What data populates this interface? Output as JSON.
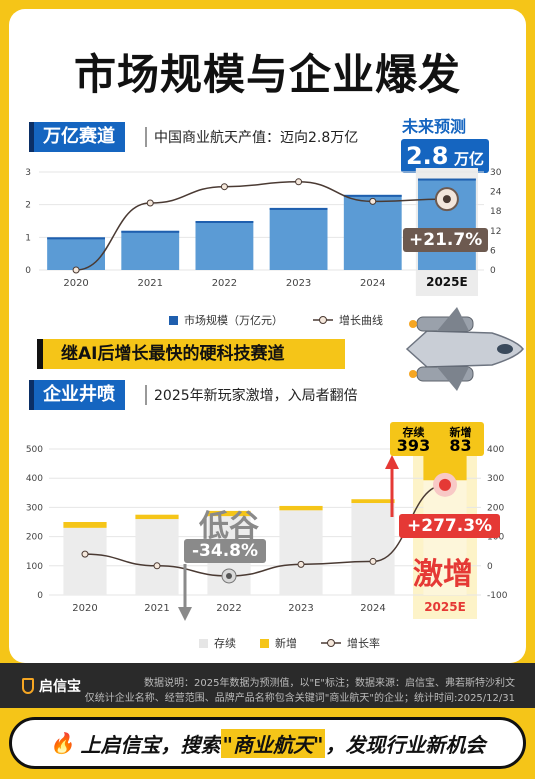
{
  "title": "市场规模与企业爆发",
  "section1": {
    "label": "万亿赛道",
    "subtitle": "中国商业航天产值：迈向2.8万亿",
    "forecast_label": "未来预测",
    "forecast_value": "2.8",
    "forecast_unit": "万亿",
    "growth_tag": "+21.7%"
  },
  "banner": "继AI后增长最快的硬科技赛道",
  "section2": {
    "label": "企业井喷",
    "subtitle": "2025年新玩家激增，入局者翻倍",
    "low_label": "低谷",
    "low_tag": "-34.8%",
    "surge_label": "激增",
    "surge_tag": "+277.3%",
    "existing_label": "存续",
    "existing_value": "393",
    "new_label": "新增",
    "new_value": "83"
  },
  "chart_data": [
    {
      "type": "bar",
      "categories": [
        "2020",
        "2021",
        "2022",
        "2023",
        "2024",
        "2025E"
      ],
      "series": [
        {
          "name": "市场规模（万亿元）",
          "values": [
            1.0,
            1.2,
            1.5,
            1.9,
            2.3,
            2.8
          ]
        },
        {
          "name": "增长曲线",
          "values": [
            0,
            20.5,
            25.5,
            27,
            21,
            21.7
          ]
        }
      ],
      "left_ticks": [
        "0",
        "1",
        "2",
        "3"
      ],
      "right_ticks": [
        "0",
        "6",
        "12",
        "18",
        "24",
        "30"
      ],
      "ylim": [
        0,
        3
      ],
      "y2lim": [
        0,
        30
      ],
      "legend": [
        "市场规模（万亿元）",
        "增长曲线"
      ],
      "grid": true,
      "legend_position": "bottom"
    },
    {
      "type": "bar",
      "categories": [
        "2020",
        "2021",
        "2022",
        "2023",
        "2024",
        "2025E"
      ],
      "series": [
        {
          "name": "存续",
          "values": [
            230,
            260,
            270,
            290,
            315,
            393
          ]
        },
        {
          "name": "新增",
          "values": [
            20,
            15,
            18,
            15,
            13,
            83
          ]
        },
        {
          "name": "增长率",
          "values": [
            40,
            0,
            -34.8,
            5,
            15,
            277.3
          ]
        }
      ],
      "left_ticks": [
        "0",
        "100",
        "200",
        "300",
        "400",
        "500"
      ],
      "right_ticks": [
        "-100",
        "0",
        "100",
        "200",
        "300",
        "400"
      ],
      "ylim": [
        0,
        500
      ],
      "y2lim": [
        -100,
        400
      ],
      "legend": [
        "存续",
        "新增",
        "增长率"
      ],
      "grid": true,
      "legend_position": "bottom"
    }
  ],
  "colors": {
    "brand_yellow": "#f5c518",
    "bar_blue": "#5b9bd5",
    "bar_blue_top": "#1f5fae",
    "header_blue": "#1565c0",
    "line_brown": "#4a3a33",
    "grey_bar": "#ececec",
    "accent_red": "#e53935"
  },
  "footer": {
    "brand": "启信宝",
    "note_line1": "数据说明：2025年数据为预测值，以\"E\"标注；数据来源：启信宝、弗若斯特沙利文",
    "note_line2": "仅统计企业名称、经营范围、品牌产品名称包含关键词\"商业航天\"的企业；统计时间:2025/12/31"
  },
  "cta": {
    "part1": "上启信宝，搜索",
    "keyword": "\"商业航天\"",
    "part2": "，发现行业新机会"
  }
}
